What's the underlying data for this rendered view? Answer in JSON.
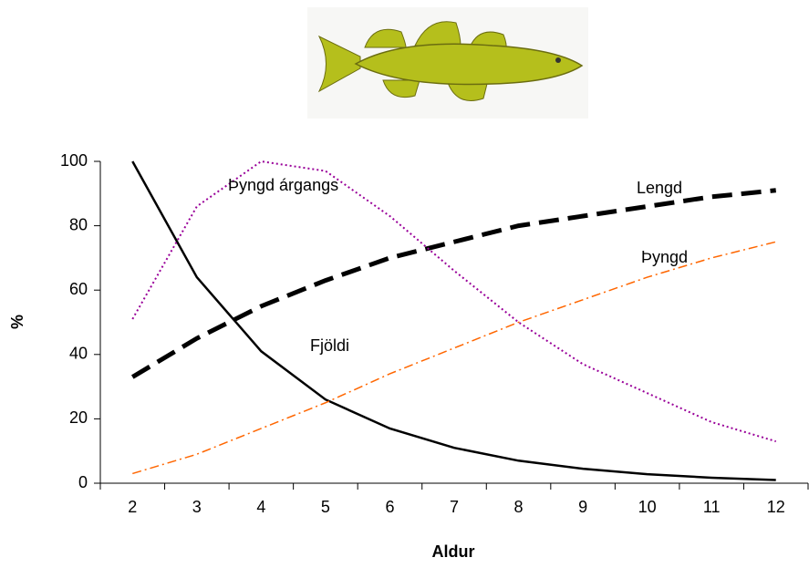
{
  "chart_data": {
    "type": "line",
    "x_label": "Aldur",
    "y_label": "%",
    "categories": [
      "2",
      "3",
      "4",
      "5",
      "6",
      "7",
      "8",
      "9",
      "10",
      "11",
      "12"
    ],
    "series": [
      {
        "name": "Fjöldi",
        "color": "#000000",
        "values": [
          100,
          64,
          41,
          26,
          17,
          11,
          7,
          4.5,
          2.8,
          1.7,
          1
        ]
      },
      {
        "name": "Lengd",
        "color": "#000000",
        "values": [
          33,
          45,
          55,
          63,
          70,
          75,
          80,
          83,
          86,
          89,
          91
        ]
      },
      {
        "name": "Þyngd",
        "color": "#ff6600",
        "values": [
          3,
          9,
          17,
          25,
          34,
          42,
          50,
          57,
          64,
          70,
          75
        ]
      },
      {
        "name": "Þyngd árgangs",
        "color": "#990099",
        "values": [
          51,
          86,
          100,
          97,
          83,
          66,
          50,
          37,
          28,
          19,
          13
        ]
      }
    ],
    "ylim": [
      0,
      100
    ],
    "yticks": [
      0,
      20,
      40,
      60,
      80,
      100
    ]
  }
}
